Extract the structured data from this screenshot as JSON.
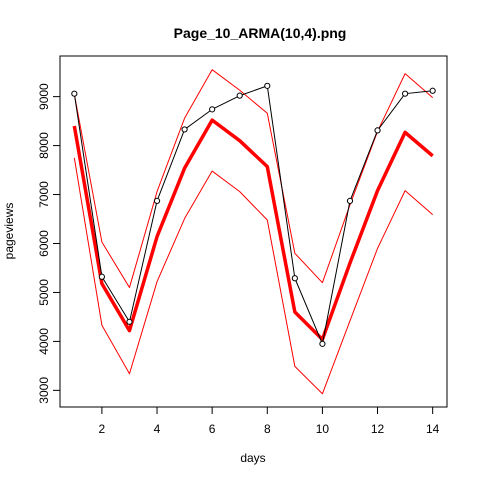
{
  "chart_data": {
    "type": "line",
    "title": "Page_10_ARMA(10,4).png",
    "xlabel": "days",
    "ylabel": "pageviews",
    "xlim": [
      0.48,
      14.52
    ],
    "ylim": [
      2660,
      9830
    ],
    "xticks": [
      2,
      4,
      6,
      8,
      10,
      12,
      14
    ],
    "yticks": [
      3000,
      4000,
      5000,
      6000,
      7000,
      8000,
      9000
    ],
    "grid": false,
    "series": [
      {
        "role": "observed",
        "color": "#000000",
        "markers": "open-circle",
        "x": [
          1,
          2,
          3,
          4,
          5,
          6,
          7,
          8,
          9,
          10,
          11,
          12,
          13,
          14
        ],
        "values": [
          9060,
          5320,
          4400,
          6870,
          8330,
          8740,
          9020,
          9220,
          5290,
          3950,
          6870,
          8310,
          9060,
          9120
        ]
      },
      {
        "role": "forecast",
        "color": "#ff0000",
        "linewidth": "thick",
        "x": [
          1,
          2,
          3,
          4,
          5,
          6,
          7,
          8,
          9,
          10,
          11,
          12,
          13,
          14
        ],
        "values": [
          8400,
          5180,
          4220,
          6140,
          7540,
          8520,
          8100,
          7570,
          4600,
          4040,
          5600,
          7080,
          8270,
          7790
        ]
      },
      {
        "role": "upper-bound",
        "color": "#ff0000",
        "linewidth": "thin",
        "x": [
          1,
          2,
          3,
          4,
          5,
          6,
          7,
          8,
          9,
          10,
          11,
          12,
          13,
          14
        ],
        "values": [
          9050,
          6030,
          5100,
          7060,
          8560,
          9550,
          9130,
          8660,
          5800,
          5200,
          6790,
          8290,
          9470,
          8980
        ]
      },
      {
        "role": "lower-bound",
        "color": "#ff0000",
        "linewidth": "thin",
        "x": [
          1,
          2,
          3,
          4,
          5,
          6,
          7,
          8,
          9,
          10,
          11,
          12,
          13,
          14
        ],
        "values": [
          7750,
          4330,
          3340,
          5220,
          6510,
          7480,
          7060,
          6480,
          3490,
          2930,
          4420,
          5900,
          7080,
          6590
        ]
      }
    ]
  }
}
